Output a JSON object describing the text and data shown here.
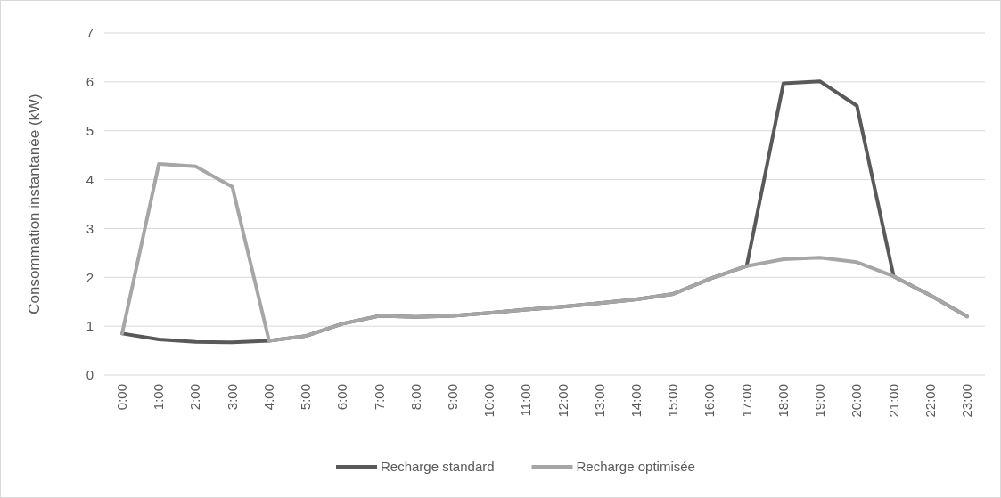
{
  "chart_data": {
    "type": "line",
    "ylabel": "Consommation instantanée (kW)",
    "categories": [
      "0:00",
      "1:00",
      "2:00",
      "3:00",
      "4:00",
      "5:00",
      "6:00",
      "7:00",
      "8:00",
      "9:00",
      "10:00",
      "11:00",
      "12:00",
      "13:00",
      "14:00",
      "15:00",
      "16:00",
      "17:00",
      "18:00",
      "19:00",
      "20:00",
      "21:00",
      "22:00",
      "23:00"
    ],
    "series": [
      {
        "name": "Recharge standard",
        "color": "#595959",
        "values": [
          0.85,
          0.73,
          0.68,
          0.67,
          0.7,
          0.8,
          1.05,
          1.21,
          1.19,
          1.21,
          1.27,
          1.34,
          1.4,
          1.47,
          1.55,
          1.66,
          1.97,
          2.23,
          5.97,
          6.01,
          5.51,
          2.02,
          1.63,
          1.2
        ]
      },
      {
        "name": "Recharge optimisée",
        "color": "#a6a6a6",
        "values": [
          0.85,
          4.32,
          4.27,
          3.85,
          0.7,
          0.8,
          1.05,
          1.21,
          1.19,
          1.21,
          1.27,
          1.34,
          1.4,
          1.47,
          1.55,
          1.66,
          1.97,
          2.23,
          2.37,
          2.4,
          2.31,
          2.02,
          1.63,
          1.2
        ]
      }
    ],
    "ylim": [
      0,
      7
    ],
    "yticks": [
      0,
      1,
      2,
      3,
      4,
      5,
      6,
      7
    ],
    "grid": "y",
    "legend": "bottom",
    "line_style": "solid",
    "marker": "none"
  }
}
